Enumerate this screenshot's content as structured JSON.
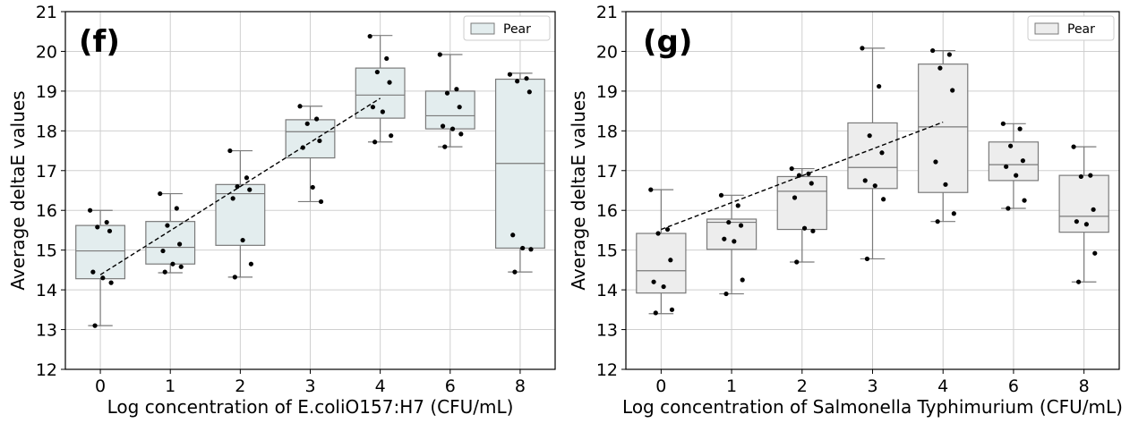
{
  "chart_data": [
    {
      "type": "box",
      "panel_label": "(f)",
      "xlabel": "Log concentration of E.coliO157:H7 (CFU/mL)",
      "ylabel": "Average deltaE values",
      "ylim": [
        12,
        21
      ],
      "yticks": [
        12,
        13,
        14,
        15,
        16,
        17,
        18,
        19,
        20,
        21
      ],
      "categories": [
        "0",
        "1",
        "2",
        "3",
        "4",
        "6",
        "8"
      ],
      "grid": true,
      "legend": {
        "label": "Pear",
        "position": "top-right"
      },
      "box_color": "#e3edee",
      "boxes": [
        {
          "whisker_low": 13.1,
          "q1": 14.28,
          "median": 14.98,
          "q3": 15.62,
          "whisker_high": 16.0
        },
        {
          "whisker_low": 14.43,
          "q1": 14.65,
          "median": 15.07,
          "q3": 15.72,
          "whisker_high": 16.42
        },
        {
          "whisker_low": 14.32,
          "q1": 15.12,
          "median": 16.42,
          "q3": 16.65,
          "whisker_high": 17.5
        },
        {
          "whisker_low": 16.22,
          "q1": 17.32,
          "median": 17.98,
          "q3": 18.28,
          "whisker_high": 18.62
        },
        {
          "whisker_low": 17.72,
          "q1": 18.32,
          "median": 18.9,
          "q3": 19.58,
          "whisker_high": 20.4
        },
        {
          "whisker_low": 17.6,
          "q1": 18.05,
          "median": 18.38,
          "q3": 19.0,
          "whisker_high": 19.92
        },
        {
          "whisker_low": 14.45,
          "q1": 15.05,
          "median": 17.18,
          "q3": 19.3,
          "whisker_high": 19.45
        }
      ],
      "points": [
        [
          16.0,
          15.7,
          15.58,
          15.48,
          14.45,
          14.3,
          14.18,
          13.1
        ],
        [
          16.42,
          16.05,
          15.62,
          15.15,
          14.98,
          14.65,
          14.58,
          14.45
        ],
        [
          17.5,
          16.82,
          16.6,
          16.52,
          16.3,
          15.25,
          14.65,
          14.32
        ],
        [
          18.62,
          18.3,
          18.18,
          17.75,
          17.58,
          16.58,
          16.22
        ],
        [
          20.38,
          19.82,
          19.48,
          19.22,
          18.6,
          18.48,
          17.88,
          17.72
        ],
        [
          19.92,
          19.05,
          18.95,
          18.6,
          18.12,
          18.05,
          17.92,
          17.6
        ],
        [
          19.42,
          19.32,
          19.25,
          18.98,
          15.38,
          15.05,
          15.02,
          14.45
        ]
      ],
      "trend_line": {
        "from": {
          "x": "0",
          "y": 14.38
        },
        "to": {
          "x": "4",
          "y": 18.82
        }
      }
    },
    {
      "type": "box",
      "panel_label": "(g)",
      "xlabel": "Log concentration of Salmonella Typhimurium (CFU/mL)",
      "ylabel": "Average deltaE values",
      "ylim": [
        12,
        21
      ],
      "yticks": [
        12,
        13,
        14,
        15,
        16,
        17,
        18,
        19,
        20,
        21
      ],
      "categories": [
        "0",
        "1",
        "2",
        "3",
        "4",
        "6",
        "8"
      ],
      "grid": true,
      "legend": {
        "label": "Pear",
        "position": "top-right"
      },
      "box_color": "#ededed",
      "boxes": [
        {
          "whisker_low": 13.4,
          "q1": 13.92,
          "median": 14.48,
          "q3": 15.42,
          "whisker_high": 16.52
        },
        {
          "whisker_low": 13.9,
          "q1": 15.02,
          "median": 15.7,
          "q3": 15.78,
          "whisker_high": 16.38
        },
        {
          "whisker_low": 14.7,
          "q1": 15.52,
          "median": 16.48,
          "q3": 16.85,
          "whisker_high": 17.05
        },
        {
          "whisker_low": 14.78,
          "q1": 16.55,
          "median": 17.08,
          "q3": 18.2,
          "whisker_high": 20.08
        },
        {
          "whisker_low": 15.72,
          "q1": 16.45,
          "median": 18.1,
          "q3": 19.68,
          "whisker_high": 20.02
        },
        {
          "whisker_low": 16.05,
          "q1": 16.75,
          "median": 17.15,
          "q3": 17.72,
          "whisker_high": 18.18
        },
        {
          "whisker_low": 14.2,
          "q1": 15.45,
          "median": 15.85,
          "q3": 16.88,
          "whisker_high": 17.6
        }
      ],
      "points": [
        [
          16.52,
          15.52,
          15.42,
          14.75,
          14.2,
          14.08,
          13.5,
          13.42
        ],
        [
          16.38,
          16.12,
          15.7,
          15.62,
          15.28,
          15.22,
          14.25,
          13.9
        ],
        [
          17.05,
          16.92,
          16.88,
          16.68,
          16.32,
          15.55,
          15.48,
          14.7
        ],
        [
          20.08,
          19.12,
          17.88,
          17.45,
          16.75,
          16.62,
          16.28,
          14.78
        ],
        [
          20.02,
          19.92,
          19.58,
          19.02,
          17.22,
          16.65,
          15.92,
          15.72
        ],
        [
          18.18,
          18.05,
          17.62,
          17.25,
          17.1,
          16.88,
          16.25,
          16.05
        ],
        [
          17.6,
          16.88,
          16.85,
          16.02,
          15.72,
          15.65,
          14.92,
          14.2
        ]
      ],
      "trend_line": {
        "from": {
          "x": "0",
          "y": 15.52
        },
        "to": {
          "x": "4",
          "y": 18.22
        }
      }
    }
  ]
}
